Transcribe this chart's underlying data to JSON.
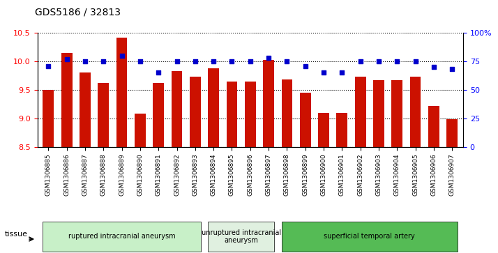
{
  "title": "GDS5186 / 32813",
  "samples": [
    "GSM1306885",
    "GSM1306886",
    "GSM1306887",
    "GSM1306888",
    "GSM1306889",
    "GSM1306890",
    "GSM1306891",
    "GSM1306892",
    "GSM1306893",
    "GSM1306894",
    "GSM1306895",
    "GSM1306896",
    "GSM1306897",
    "GSM1306898",
    "GSM1306899",
    "GSM1306900",
    "GSM1306901",
    "GSM1306902",
    "GSM1306903",
    "GSM1306904",
    "GSM1306905",
    "GSM1306906",
    "GSM1306907"
  ],
  "bar_values": [
    9.5,
    10.15,
    9.8,
    9.62,
    10.42,
    9.08,
    9.62,
    9.83,
    9.73,
    9.88,
    9.64,
    9.64,
    10.03,
    9.68,
    9.45,
    9.09,
    9.09,
    9.73,
    9.67,
    9.67,
    9.73,
    9.22,
    8.98
  ],
  "percentile_values": [
    71,
    77,
    75,
    75,
    80,
    75,
    65,
    75,
    75,
    75,
    75,
    75,
    78,
    75,
    71,
    65,
    65,
    75,
    75,
    75,
    75,
    70,
    68
  ],
  "groups": [
    {
      "label": "ruptured intracranial aneurysm",
      "start": 0,
      "end": 8,
      "color": "#ccffcc"
    },
    {
      "label": "unruptured intracranial\naneurysm",
      "start": 9,
      "end": 12,
      "color": "#eeffee"
    },
    {
      "label": "superficial temporal artery",
      "start": 13,
      "end": 22,
      "color": "#44cc44"
    }
  ],
  "bar_color": "#cc1100",
  "dot_color": "#0000cc",
  "left_ylim": [
    8.5,
    10.5
  ],
  "right_ylim": [
    0,
    100
  ],
  "left_yticks": [
    8.5,
    9.0,
    9.5,
    10.0,
    10.5
  ],
  "right_yticks": [
    0,
    25,
    50,
    75,
    100
  ],
  "right_yticklabels": [
    "0",
    "25",
    "50",
    "75",
    "100%"
  ],
  "ylabel_left": "",
  "ylabel_right": "",
  "background_color": "#f0f0f0",
  "plot_bg": "#ffffff"
}
